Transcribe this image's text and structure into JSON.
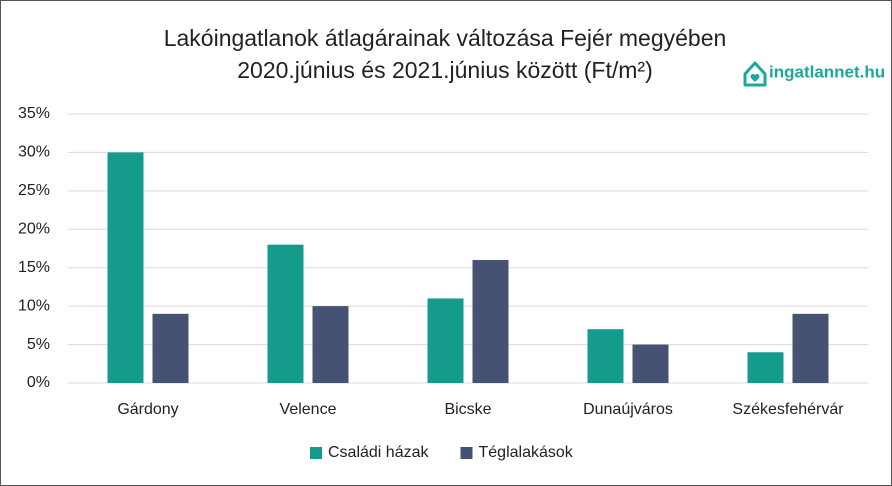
{
  "chart_data": {
    "type": "bar",
    "title": "Lakóingatlanok átlagárainak változása Fejér megyében",
    "subtitle": "2020.június és 2021.június között (Ft/m²)",
    "logo": "ingatlannet.hu",
    "categories": [
      "Gárdony",
      "Velence",
      "Bicske",
      "Dunaújváros",
      "Székesfehérvár"
    ],
    "series": [
      {
        "name": "Családi házak",
        "color": "#149b8b",
        "values": [
          30,
          18,
          11,
          7,
          4
        ]
      },
      {
        "name": "Téglalakások",
        "color": "#465273",
        "values": [
          9,
          10,
          16,
          5,
          9
        ]
      }
    ],
    "ylim": [
      0,
      35
    ],
    "yticks": [
      {
        "value": 0,
        "label": "0%"
      },
      {
        "value": 5,
        "label": "5%"
      },
      {
        "value": 10,
        "label": "10%"
      },
      {
        "value": 15,
        "label": "15%"
      },
      {
        "value": 20,
        "label": "20%"
      },
      {
        "value": 25,
        "label": "25%"
      },
      {
        "value": 30,
        "label": "30%"
      },
      {
        "value": 35,
        "label": "35%"
      }
    ],
    "grid": true,
    "legend": "bottom"
  }
}
